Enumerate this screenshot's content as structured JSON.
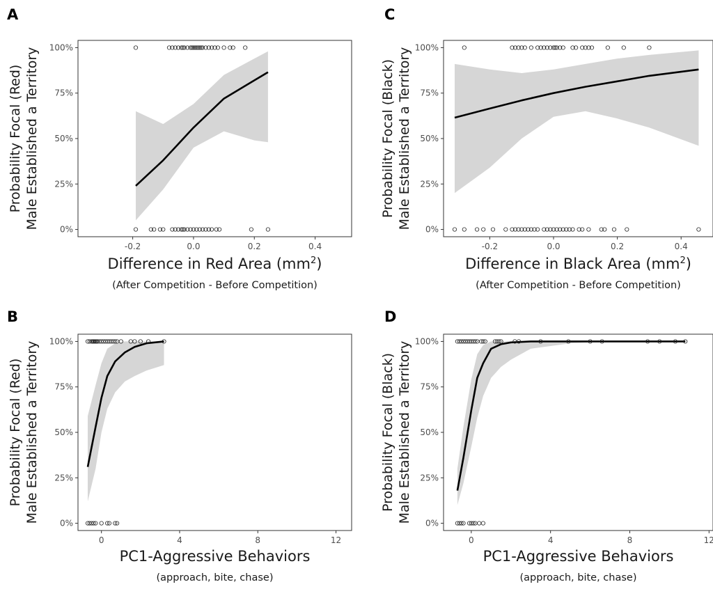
{
  "chart_data": [
    {
      "panel": "A",
      "type": "line",
      "ylabel_line1": "Probability Focal (Red)",
      "ylabel_line2": "Male Established a Territory",
      "xlabel": "Difference in Red Area (mm",
      "xlabel_sup": "2",
      "xlabel_end": ")",
      "xsub": "(After Competition - Before Competition)",
      "xlim": [
        -0.38,
        0.52
      ],
      "ylim": [
        -0.04,
        1.04
      ],
      "xticks": [
        -0.2,
        0.0,
        0.2,
        0.4
      ],
      "xtick_labels": [
        "-0.2",
        "0.0",
        "0.2",
        "0.4"
      ],
      "yticks": [
        0,
        0.25,
        0.5,
        0.75,
        1.0
      ],
      "ytick_labels": [
        "0%",
        "25%",
        "50%",
        "75%",
        "100%"
      ],
      "fit_x": [
        -0.19,
        -0.1,
        0.0,
        0.1,
        0.2,
        0.245
      ],
      "fit_y": [
        0.24,
        0.38,
        0.56,
        0.72,
        0.82,
        0.865
      ],
      "ci_lower": [
        0.05,
        0.22,
        0.45,
        0.54,
        0.49,
        0.48
      ],
      "ci_upper": [
        0.65,
        0.58,
        0.69,
        0.85,
        0.94,
        0.98
      ],
      "points_y1": [
        -0.19,
        -0.08,
        -0.07,
        -0.06,
        -0.05,
        -0.04,
        -0.035,
        -0.03,
        -0.02,
        -0.01,
        -0.005,
        0.0,
        0.005,
        0.01,
        0.015,
        0.02,
        0.025,
        0.03,
        0.04,
        0.05,
        0.06,
        0.07,
        0.08,
        0.1,
        0.12,
        0.13,
        0.17
      ],
      "points_y0": [
        -0.19,
        -0.14,
        -0.13,
        -0.11,
        -0.1,
        -0.07,
        -0.06,
        -0.05,
        -0.04,
        -0.035,
        -0.03,
        -0.02,
        -0.01,
        0.0,
        0.01,
        0.02,
        0.03,
        0.04,
        0.05,
        0.06,
        0.075,
        0.085,
        0.19,
        0.245
      ]
    },
    {
      "panel": "B",
      "type": "line",
      "ylabel_line1": "Probability Focal (Red)",
      "ylabel_line2": "Male Established a Territory",
      "xlabel": "PC1-Aggressive Behaviors",
      "xsub": "(approach, bite, chase)",
      "xlim": [
        -1.2,
        12.8
      ],
      "ylim": [
        -0.04,
        1.04
      ],
      "xticks": [
        0,
        4,
        8,
        12
      ],
      "xtick_labels": [
        "0",
        "4",
        "8",
        "12"
      ],
      "yticks": [
        0,
        0.25,
        0.5,
        0.75,
        1.0
      ],
      "ytick_labels": [
        "0%",
        "25%",
        "50%",
        "75%",
        "100%"
      ],
      "fit_x": [
        -0.7,
        -0.3,
        0.0,
        0.3,
        0.7,
        1.2,
        1.7,
        2.3,
        3.2
      ],
      "fit_y": [
        0.31,
        0.53,
        0.69,
        0.81,
        0.89,
        0.94,
        0.97,
        0.99,
        1.0
      ],
      "ci_lower": [
        0.12,
        0.3,
        0.5,
        0.63,
        0.72,
        0.78,
        0.81,
        0.84,
        0.87
      ],
      "ci_upper": [
        0.59,
        0.76,
        0.88,
        0.96,
        0.99,
        1.0,
        1.0,
        1.0,
        1.0
      ],
      "points_y1": [
        -0.7,
        -0.6,
        -0.5,
        -0.45,
        -0.4,
        -0.35,
        -0.3,
        -0.25,
        -0.2,
        -0.1,
        0.0,
        0.1,
        0.2,
        0.3,
        0.4,
        0.5,
        0.6,
        0.7,
        0.8,
        1.0,
        1.5,
        1.7,
        2.0,
        2.4,
        3.2
      ],
      "points_y0": [
        -0.7,
        -0.6,
        -0.5,
        -0.4,
        -0.3,
        0.0,
        0.3,
        0.4,
        0.7,
        0.8
      ]
    },
    {
      "panel": "C",
      "type": "line",
      "ylabel_line1": "Probability Focal (Black)",
      "ylabel_line2": "Male Established a Territory",
      "xlabel": "Difference in Black Area (mm",
      "xlabel_sup": "2",
      "xlabel_end": ")",
      "xsub": "(After Competition - Before Competition)",
      "xlim": [
        -0.345,
        0.5
      ],
      "ylim": [
        -0.04,
        1.04
      ],
      "xticks": [
        -0.2,
        0.0,
        0.2,
        0.4
      ],
      "xtick_labels": [
        "-0.2",
        "0.0",
        "0.2",
        "0.4"
      ],
      "yticks": [
        0,
        0.25,
        0.5,
        0.75,
        1.0
      ],
      "ytick_labels": [
        "0%",
        "25%",
        "50%",
        "75%",
        "100%"
      ],
      "fit_x": [
        -0.31,
        -0.2,
        -0.1,
        0.0,
        0.1,
        0.2,
        0.3,
        0.455
      ],
      "fit_y": [
        0.615,
        0.665,
        0.71,
        0.75,
        0.785,
        0.815,
        0.845,
        0.88
      ],
      "ci_lower": [
        0.2,
        0.34,
        0.5,
        0.62,
        0.65,
        0.61,
        0.56,
        0.46
      ],
      "ci_upper": [
        0.91,
        0.88,
        0.86,
        0.88,
        0.91,
        0.94,
        0.96,
        0.985
      ],
      "points_y1": [
        -0.28,
        -0.13,
        -0.12,
        -0.11,
        -0.1,
        -0.09,
        -0.07,
        -0.05,
        -0.04,
        -0.03,
        -0.02,
        -0.01,
        0.0,
        0.005,
        0.01,
        0.02,
        0.03,
        0.06,
        0.07,
        0.09,
        0.1,
        0.11,
        0.12,
        0.17,
        0.22,
        0.3
      ],
      "points_y0": [
        -0.31,
        -0.28,
        -0.24,
        -0.22,
        -0.19,
        -0.15,
        -0.13,
        -0.12,
        -0.11,
        -0.1,
        -0.09,
        -0.08,
        -0.07,
        -0.06,
        -0.05,
        -0.03,
        -0.02,
        -0.01,
        0.0,
        0.01,
        0.02,
        0.03,
        0.04,
        0.05,
        0.06,
        0.08,
        0.09,
        0.11,
        0.15,
        0.16,
        0.19,
        0.23,
        0.455
      ]
    },
    {
      "panel": "D",
      "type": "line",
      "ylabel_line1": "Probability Focal (Black)",
      "ylabel_line2": "Male Established a Territory",
      "xlabel": "PC1-Aggressive Behaviors",
      "xsub": "(approach, bite, chase)",
      "xlim": [
        -1.4,
        12.2
      ],
      "ylim": [
        -0.04,
        1.04
      ],
      "xticks": [
        0,
        4,
        8,
        12
      ],
      "xtick_labels": [
        "0",
        "4",
        "8",
        "12"
      ],
      "yticks": [
        0,
        0.25,
        0.5,
        0.75,
        1.0
      ],
      "ytick_labels": [
        "0%",
        "25%",
        "50%",
        "75%",
        "100%"
      ],
      "fit_x": [
        -0.7,
        -0.4,
        0.0,
        0.3,
        0.6,
        1.0,
        1.5,
        2.0,
        3.0,
        5.0,
        7.0,
        9.0,
        10.8
      ],
      "fit_y": [
        0.18,
        0.36,
        0.62,
        0.8,
        0.88,
        0.96,
        0.985,
        0.995,
        1.0,
        1.0,
        1.0,
        1.0,
        1.0
      ],
      "ci_lower": [
        0.1,
        0.22,
        0.42,
        0.58,
        0.7,
        0.8,
        0.86,
        0.9,
        0.96,
        0.99,
        1.0,
        1.0,
        1.0
      ],
      "ci_upper": [
        0.3,
        0.53,
        0.79,
        0.93,
        0.98,
        1.0,
        1.0,
        1.0,
        1.0,
        1.0,
        1.0,
        1.0,
        1.0
      ],
      "points_y1": [
        -0.7,
        -0.6,
        -0.5,
        -0.4,
        -0.3,
        -0.2,
        -0.1,
        0.0,
        0.1,
        0.2,
        0.3,
        0.5,
        0.6,
        0.7,
        1.2,
        1.3,
        1.4,
        1.5,
        2.2,
        2.4,
        3.5,
        4.9,
        6.0,
        6.6,
        8.9,
        9.5,
        10.3,
        10.8
      ],
      "points_y0": [
        -0.7,
        -0.6,
        -0.5,
        -0.4,
        -0.1,
        0.0,
        0.1,
        0.2,
        0.4,
        0.6
      ]
    }
  ]
}
